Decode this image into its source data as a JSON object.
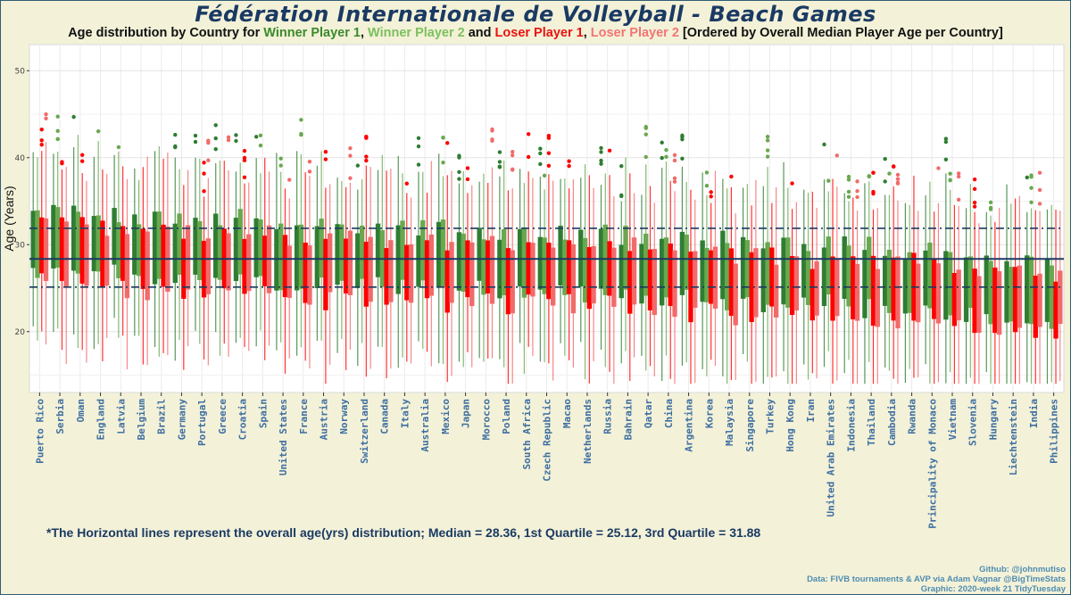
{
  "title": "Fédération Internationale de Volleyball - Beach Games",
  "subtitle": {
    "prefix": "Age distribution by Country for ",
    "w1": "Winner Player 1",
    "sep1": ", ",
    "w2": "Winner Player 2",
    "mid": " and ",
    "l1": "Loser Player 1",
    "sep2": ", ",
    "l2": "Loser Player 2",
    "suffix": " [Ordered by Overall Median Player Age per Country]"
  },
  "footnote": "*The Horizontal lines represent the overall age(yrs) distribution; Median = 28.36, 1st Quartile = 25.12, 3rd Quartile = 31.88",
  "credits": [
    "Github: @johnmutiso",
    "Data: FIVB tournaments & AVP via Adam Vagnar @BigTimeStats",
    "Graphic: 2020-week 21 TidyTuesday"
  ],
  "colors": {
    "winner_player_1": "#2e7d32",
    "winner_player_2": "#6aa84f",
    "loser_player_1": "#ff0000",
    "loser_player_2": "#f26b6b",
    "reference_lines": "#1b3a63",
    "background": "#f3f2d9",
    "panel": "#ffffff"
  },
  "chart_data": {
    "type": "boxplot",
    "ylabel": "Age (Years)",
    "xlabel": "",
    "ylim": [
      13,
      53
    ],
    "yticks": [
      20,
      30,
      40,
      50
    ],
    "grid": true,
    "legend": "none",
    "series_names": [
      "Winner Player 1",
      "Winner Player 2",
      "Loser Player 1",
      "Loser Player 2"
    ],
    "reference_lines": [
      {
        "label": "Median",
        "value": 28.36,
        "style": "solid"
      },
      {
        "label": "1st Quartile",
        "value": 25.12,
        "style": "dashdot"
      },
      {
        "label": "3rd Quartile",
        "value": 31.88,
        "style": "dashdot"
      }
    ],
    "categories": [
      {
        "name": "Puerto Rico",
        "median": 30.8
      },
      {
        "name": "Serbia",
        "median": 30.5
      },
      {
        "name": "Oman",
        "median": 30.3
      },
      {
        "name": "England",
        "median": 30.1
      },
      {
        "name": "Latvia",
        "median": 30.0
      },
      {
        "name": "Belgium",
        "median": 29.8
      },
      {
        "name": "Brazil",
        "median": 29.6
      },
      {
        "name": "Germany",
        "median": 29.5
      },
      {
        "name": "Portugal",
        "median": 29.4
      },
      {
        "name": "Greece",
        "median": 29.3
      },
      {
        "name": "Croatia",
        "median": 29.2
      },
      {
        "name": "Spain",
        "median": 29.1
      },
      {
        "name": "United States",
        "median": 29.0
      },
      {
        "name": "France",
        "median": 28.9
      },
      {
        "name": "Austria",
        "median": 28.8
      },
      {
        "name": "Norway",
        "median": 28.8
      },
      {
        "name": "Switzerland",
        "median": 28.7
      },
      {
        "name": "Canada",
        "median": 28.6
      },
      {
        "name": "Italy",
        "median": 28.5
      },
      {
        "name": "Australia",
        "median": 28.4
      },
      {
        "name": "Mexico",
        "median": 28.3
      },
      {
        "name": "Japan",
        "median": 28.3
      },
      {
        "name": "Morocco",
        "median": 28.2
      },
      {
        "name": "Poland",
        "median": 28.1
      },
      {
        "name": "South Africa",
        "median": 28.0
      },
      {
        "name": "Czech Republic",
        "median": 27.9
      },
      {
        "name": "Macao",
        "median": 27.8
      },
      {
        "name": "Netherlands",
        "median": 27.7
      },
      {
        "name": "Russia",
        "median": 27.6
      },
      {
        "name": "Bahrain",
        "median": 27.5
      },
      {
        "name": "Qatar",
        "median": 27.4
      },
      {
        "name": "China",
        "median": 27.3
      },
      {
        "name": "Argentina",
        "median": 27.2
      },
      {
        "name": "Korea",
        "median": 27.1
      },
      {
        "name": "Malaysia",
        "median": 27.0
      },
      {
        "name": "Singapore",
        "median": 26.9
      },
      {
        "name": "Turkey",
        "median": 26.8
      },
      {
        "name": "Hong Kong",
        "median": 26.7
      },
      {
        "name": "Iran",
        "median": 26.6
      },
      {
        "name": "United Arab Emirates",
        "median": 26.4
      },
      {
        "name": "Indonesia",
        "median": 26.3
      },
      {
        "name": "Thailand",
        "median": 26.2
      },
      {
        "name": "Cambodia",
        "median": 26.0
      },
      {
        "name": "Rwanda",
        "median": 25.9
      },
      {
        "name": "Principality of Monaco",
        "median": 25.7
      },
      {
        "name": "Vietnam",
        "median": 25.5
      },
      {
        "name": "Slovenia",
        "median": 25.3
      },
      {
        "name": "Hungary",
        "median": 25.1
      },
      {
        "name": "Liechtenstein",
        "median": 24.9
      },
      {
        "name": "India",
        "median": 24.7
      },
      {
        "name": "Philippines",
        "median": 24.5
      }
    ]
  }
}
